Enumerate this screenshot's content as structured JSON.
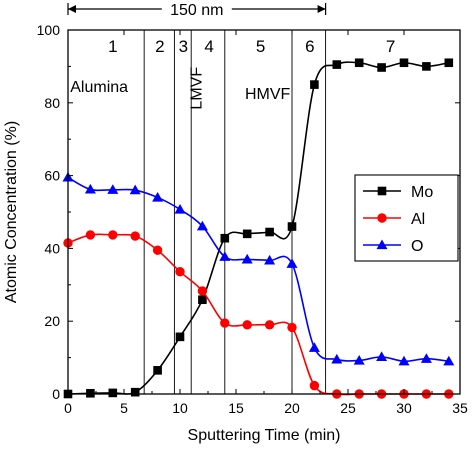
{
  "chart_data": {
    "type": "line",
    "xlabel": "Sputtering Time (min)",
    "ylabel": "Atomic Concentration (%)",
    "xlim": [
      0,
      35
    ],
    "ylim": [
      0,
      100
    ],
    "xticks": [
      0,
      5,
      10,
      15,
      20,
      25,
      30,
      35
    ],
    "yticks": [
      0,
      20,
      40,
      60,
      80,
      100
    ],
    "grid": false,
    "legend_position": "right",
    "thickness_annotation": "150 nm",
    "thickness_span": [
      0,
      23
    ],
    "region_boundaries": [
      6.8,
      9.5,
      11,
      14,
      20,
      23
    ],
    "regions": [
      {
        "number": "1",
        "x": 4
      },
      {
        "number": "2",
        "x": 8.2
      },
      {
        "number": "3",
        "x": 10.3
      },
      {
        "number": "4",
        "x": 12.6
      },
      {
        "number": "5",
        "x": 17.2
      },
      {
        "number": "6",
        "x": 21.6
      },
      {
        "number": "7",
        "x": 28.8
      }
    ],
    "phase_labels": [
      {
        "text": "Alumina",
        "x": 0.2,
        "y": 83,
        "orientation": "horizontal"
      },
      {
        "text": "LMVF",
        "x": 11.9,
        "y": 84,
        "orientation": "vertical"
      },
      {
        "text": "HMVF",
        "x": 15.8,
        "y": 81,
        "orientation": "horizontal"
      }
    ],
    "series": [
      {
        "name": "Mo",
        "color": "#000000",
        "marker": "square",
        "x": [
          0,
          2,
          4,
          6,
          8,
          10,
          12,
          14,
          16,
          18,
          20,
          22,
          24,
          26,
          28,
          30,
          32,
          34
        ],
        "y": [
          0,
          0.2,
          0.3,
          0.5,
          6.5,
          15.7,
          25.9,
          42.8,
          44.0,
          44.5,
          46.0,
          85.0,
          90.5,
          91.0,
          89.7,
          91.0,
          90.0,
          91.0
        ]
      },
      {
        "name": "Al",
        "color": "#ff0000",
        "marker": "circle",
        "x": [
          0,
          2,
          4,
          6,
          8,
          10,
          12,
          14,
          16,
          18,
          20,
          22,
          24,
          26,
          28,
          30,
          32,
          34
        ],
        "y": [
          41.5,
          43.7,
          43.7,
          43.4,
          39.5,
          33.6,
          28.3,
          19.5,
          19.0,
          19.0,
          18.3,
          2.3,
          0,
          0,
          0,
          0,
          0,
          0
        ]
      },
      {
        "name": "O",
        "color": "#0000ff",
        "marker": "triangle",
        "x": [
          0,
          2,
          4,
          6,
          8,
          10,
          12,
          14,
          16,
          18,
          20,
          22,
          24,
          26,
          28,
          30,
          32,
          34
        ],
        "y": [
          59.5,
          56.2,
          56.1,
          56.0,
          54.0,
          50.7,
          46.1,
          37.7,
          37.0,
          36.7,
          35.8,
          12.7,
          9.5,
          9.2,
          10.2,
          9.0,
          9.7,
          9.0
        ]
      }
    ]
  }
}
